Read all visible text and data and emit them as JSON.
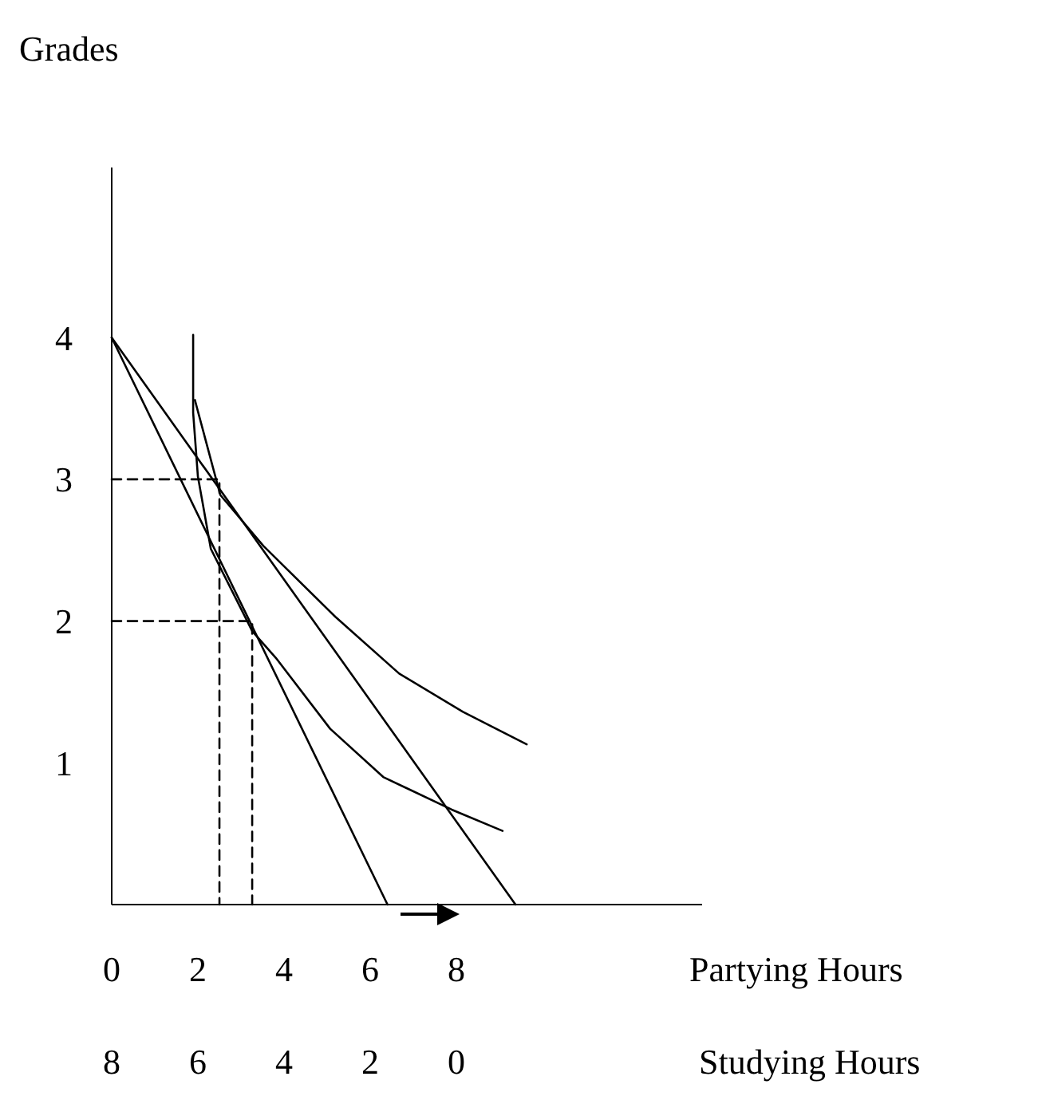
{
  "chart_data": {
    "type": "line",
    "ylabel": "Grades",
    "xlabel": "Partying Hours",
    "x2label": "Studying Hours",
    "xlim": [
      0,
      13.7
    ],
    "xticks": [
      0,
      2,
      4,
      6,
      8
    ],
    "x2lim": [
      8,
      -5.7
    ],
    "x2ticks": [
      8,
      6,
      4,
      2,
      0
    ],
    "ylim": [
      0,
      5.2
    ],
    "yticks": [
      1,
      2,
      3,
      4
    ],
    "grid": false,
    "marker": "none",
    "line_style": "solid",
    "series": [
      {
        "color": "#000000",
        "x": [
          0,
          6.4
        ],
        "values": [
          4,
          0
        ]
      },
      {
        "color": "#000000",
        "x": [
          0,
          9.37
        ],
        "values": [
          4,
          0
        ]
      },
      {
        "color": "#000000",
        "x": [
          1.93,
          2.52,
          3.52,
          5.19,
          6.67,
          8.15,
          9.63
        ],
        "values": [
          3.56,
          2.89,
          2.53,
          2.03,
          1.63,
          1.36,
          1.13
        ]
      },
      {
        "color": "#000000",
        "x": [
          1.89,
          1.89,
          2.0,
          2.3,
          3.26,
          3.81,
          5.07,
          6.3,
          7.89,
          9.07
        ],
        "values": [
          4.02,
          3.47,
          3.02,
          2.51,
          1.93,
          1.74,
          1.24,
          0.9,
          0.67,
          0.52
        ]
      },
      {
        "color": "#000000",
        "line_style": "dashed",
        "x": [
          0,
          2.5,
          2.5
        ],
        "values": [
          3,
          3,
          0
        ]
      },
      {
        "color": "#000000",
        "line_style": "dashed",
        "x": [
          0,
          3.26,
          3.26
        ],
        "values": [
          2,
          2,
          0
        ]
      }
    ]
  }
}
